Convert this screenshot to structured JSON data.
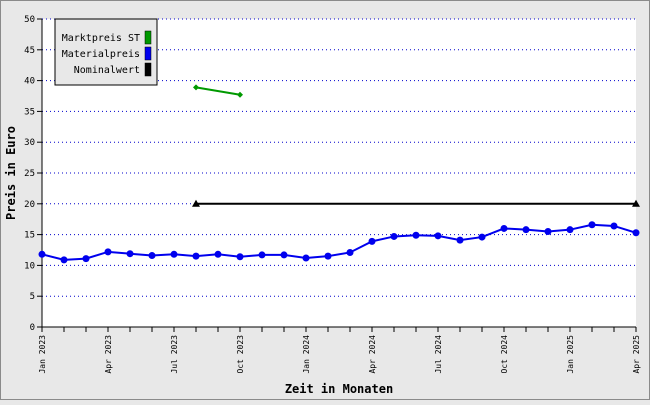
{
  "chart_data": {
    "type": "line",
    "title": "",
    "xlabel": "Zeit in Monaten",
    "ylabel": "Preis in Euro",
    "ylim": [
      0,
      50
    ],
    "yticks": [
      0,
      5,
      10,
      15,
      20,
      25,
      30,
      35,
      40,
      45,
      50
    ],
    "grid": "horizontal dotted",
    "legend_position": "top-left",
    "x_months": [
      "2023-01",
      "2023-02",
      "2023-03",
      "2023-04",
      "2023-05",
      "2023-06",
      "2023-07",
      "2023-08",
      "2023-09",
      "2023-10",
      "2023-11",
      "2023-12",
      "2024-01",
      "2024-02",
      "2024-03",
      "2024-04",
      "2024-05",
      "2024-06",
      "2024-07",
      "2024-08",
      "2024-09",
      "2024-10",
      "2024-11",
      "2024-12",
      "2025-01",
      "2025-02",
      "2025-03",
      "2025-04"
    ],
    "x_tick_labels": [
      {
        "month": "2023-01",
        "label": "Jan 2023"
      },
      {
        "month": "2023-04",
        "label": "Apr 2023"
      },
      {
        "month": "2023-07",
        "label": "Jul 2023"
      },
      {
        "month": "2023-10",
        "label": "Oct 2023"
      },
      {
        "month": "2024-01",
        "label": "Jan 2024"
      },
      {
        "month": "2024-04",
        "label": "Apr 2024"
      },
      {
        "month": "2024-07",
        "label": "Jul 2024"
      },
      {
        "month": "2024-10",
        "label": "Oct 2024"
      },
      {
        "month": "2025-01",
        "label": "Jan 2025"
      },
      {
        "month": "2025-04",
        "label": "Apr 2025"
      }
    ],
    "series": [
      {
        "name": "Marktpreis ST",
        "color": "#009900",
        "marker": "diamond",
        "points": [
          {
            "x": "2023-08",
            "y": 38.9
          },
          {
            "x": "2023-10",
            "y": 37.7
          }
        ]
      },
      {
        "name": "Materialpreis",
        "color": "#0000ee",
        "marker": "circle",
        "points": [
          {
            "x": "2023-01",
            "y": 11.8
          },
          {
            "x": "2023-02",
            "y": 10.9
          },
          {
            "x": "2023-03",
            "y": 11.1
          },
          {
            "x": "2023-04",
            "y": 12.2
          },
          {
            "x": "2023-05",
            "y": 11.9
          },
          {
            "x": "2023-06",
            "y": 11.6
          },
          {
            "x": "2023-07",
            "y": 11.8
          },
          {
            "x": "2023-08",
            "y": 11.5
          },
          {
            "x": "2023-09",
            "y": 11.8
          },
          {
            "x": "2023-10",
            "y": 11.4
          },
          {
            "x": "2023-11",
            "y": 11.7
          },
          {
            "x": "2023-12",
            "y": 11.7
          },
          {
            "x": "2024-01",
            "y": 11.2
          },
          {
            "x": "2024-02",
            "y": 11.5
          },
          {
            "x": "2024-03",
            "y": 12.1
          },
          {
            "x": "2024-04",
            "y": 13.9
          },
          {
            "x": "2024-05",
            "y": 14.7
          },
          {
            "x": "2024-06",
            "y": 14.9
          },
          {
            "x": "2024-07",
            "y": 14.8
          },
          {
            "x": "2024-08",
            "y": 14.1
          },
          {
            "x": "2024-09",
            "y": 14.6
          },
          {
            "x": "2024-10",
            "y": 16.0
          },
          {
            "x": "2024-11",
            "y": 15.8
          },
          {
            "x": "2024-12",
            "y": 15.5
          },
          {
            "x": "2025-01",
            "y": 15.8
          },
          {
            "x": "2025-02",
            "y": 16.6
          },
          {
            "x": "2025-03",
            "y": 16.4
          },
          {
            "x": "2025-04",
            "y": 15.3
          }
        ]
      },
      {
        "name": "Nominalwert",
        "color": "#000000",
        "marker": "triangle",
        "points": [
          {
            "x": "2023-08",
            "y": 20
          },
          {
            "x": "2025-04",
            "y": 20
          }
        ]
      }
    ]
  }
}
